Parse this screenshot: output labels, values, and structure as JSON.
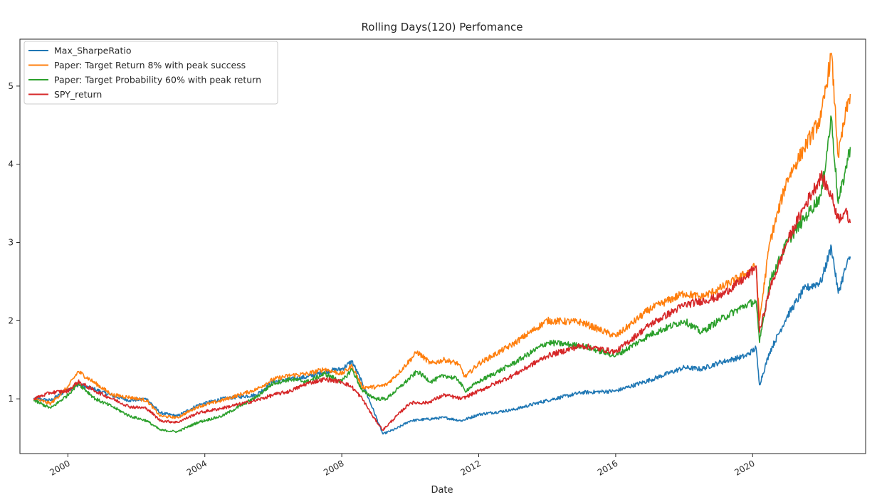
{
  "chart_data": {
    "type": "line",
    "title": "Rolling Days(120) Perfomance",
    "xlabel": "Date",
    "ylabel": "",
    "xlim": [
      1998.6,
      2023.3
    ],
    "ylim": [
      0.3,
      5.6
    ],
    "x_ticks": [
      {
        "value": 2000,
        "label": "2000"
      },
      {
        "value": 2004,
        "label": "2004"
      },
      {
        "value": 2008,
        "label": "2008"
      },
      {
        "value": 2012,
        "label": "2012"
      },
      {
        "value": 2016,
        "label": "2016"
      },
      {
        "value": 2020,
        "label": "2020"
      }
    ],
    "y_ticks": [
      {
        "value": 1,
        "label": "1"
      },
      {
        "value": 2,
        "label": "2"
      },
      {
        "value": 3,
        "label": "3"
      },
      {
        "value": 4,
        "label": "4"
      },
      {
        "value": 5,
        "label": "5"
      }
    ],
    "grid": false,
    "legend_position": "top-left",
    "series": [
      {
        "name": "Max_SharpeRatio",
        "color": "#1f77b4",
        "points": [
          [
            1999.0,
            1.0
          ],
          [
            1999.5,
            0.98
          ],
          [
            2000.0,
            1.12
          ],
          [
            2000.3,
            1.18
          ],
          [
            2000.8,
            1.12
          ],
          [
            2001.3,
            1.04
          ],
          [
            2001.8,
            0.98
          ],
          [
            2002.3,
            1.0
          ],
          [
            2002.7,
            0.82
          ],
          [
            2003.2,
            0.78
          ],
          [
            2003.8,
            0.92
          ],
          [
            2004.5,
            1.0
          ],
          [
            2005.5,
            1.05
          ],
          [
            2006.0,
            1.22
          ],
          [
            2006.5,
            1.25
          ],
          [
            2007.0,
            1.28
          ],
          [
            2007.5,
            1.35
          ],
          [
            2008.0,
            1.38
          ],
          [
            2008.3,
            1.48
          ],
          [
            2008.6,
            1.2
          ],
          [
            2008.9,
            0.88
          ],
          [
            2009.2,
            0.55
          ],
          [
            2009.6,
            0.62
          ],
          [
            2010.0,
            0.72
          ],
          [
            2010.5,
            0.74
          ],
          [
            2011.0,
            0.76
          ],
          [
            2011.5,
            0.72
          ],
          [
            2012.0,
            0.8
          ],
          [
            2013.0,
            0.86
          ],
          [
            2014.0,
            0.98
          ],
          [
            2015.0,
            1.08
          ],
          [
            2016.0,
            1.1
          ],
          [
            2017.0,
            1.24
          ],
          [
            2018.0,
            1.4
          ],
          [
            2018.5,
            1.38
          ],
          [
            2019.0,
            1.46
          ],
          [
            2019.8,
            1.55
          ],
          [
            2020.1,
            1.65
          ],
          [
            2020.2,
            1.18
          ],
          [
            2020.5,
            1.6
          ],
          [
            2021.0,
            2.05
          ],
          [
            2021.5,
            2.4
          ],
          [
            2022.0,
            2.5
          ],
          [
            2022.3,
            2.95
          ],
          [
            2022.5,
            2.35
          ],
          [
            2022.7,
            2.65
          ],
          [
            2022.85,
            2.82
          ]
        ]
      },
      {
        "name": "Paper: Target Return 8% with peak success",
        "color": "#ff7f0e",
        "points": [
          [
            1999.0,
            1.0
          ],
          [
            1999.5,
            0.94
          ],
          [
            2000.0,
            1.15
          ],
          [
            2000.3,
            1.35
          ],
          [
            2000.8,
            1.2
          ],
          [
            2001.3,
            1.05
          ],
          [
            2001.8,
            1.02
          ],
          [
            2002.3,
            0.98
          ],
          [
            2002.7,
            0.78
          ],
          [
            2003.2,
            0.76
          ],
          [
            2003.8,
            0.9
          ],
          [
            2004.5,
            0.98
          ],
          [
            2005.5,
            1.12
          ],
          [
            2006.0,
            1.25
          ],
          [
            2006.5,
            1.3
          ],
          [
            2007.0,
            1.32
          ],
          [
            2007.5,
            1.38
          ],
          [
            2008.0,
            1.32
          ],
          [
            2008.3,
            1.42
          ],
          [
            2008.6,
            1.15
          ],
          [
            2009.0,
            1.15
          ],
          [
            2009.3,
            1.18
          ],
          [
            2009.7,
            1.35
          ],
          [
            2010.2,
            1.6
          ],
          [
            2010.6,
            1.45
          ],
          [
            2011.0,
            1.5
          ],
          [
            2011.4,
            1.45
          ],
          [
            2011.6,
            1.28
          ],
          [
            2012.0,
            1.45
          ],
          [
            2013.0,
            1.7
          ],
          [
            2014.0,
            2.0
          ],
          [
            2015.0,
            1.98
          ],
          [
            2016.0,
            1.8
          ],
          [
            2017.0,
            2.15
          ],
          [
            2018.0,
            2.35
          ],
          [
            2018.5,
            2.3
          ],
          [
            2019.0,
            2.4
          ],
          [
            2019.8,
            2.6
          ],
          [
            2020.1,
            2.7
          ],
          [
            2020.2,
            2.0
          ],
          [
            2020.5,
            3.0
          ],
          [
            2021.0,
            3.8
          ],
          [
            2021.5,
            4.2
          ],
          [
            2022.0,
            4.6
          ],
          [
            2022.3,
            5.42
          ],
          [
            2022.5,
            4.1
          ],
          [
            2022.7,
            4.6
          ],
          [
            2022.85,
            4.9
          ]
        ]
      },
      {
        "name": "Paper: Target Probability 60% with peak return",
        "color": "#2ca02c",
        "points": [
          [
            1999.0,
            0.98
          ],
          [
            1999.5,
            0.88
          ],
          [
            2000.0,
            1.05
          ],
          [
            2000.3,
            1.2
          ],
          [
            2000.8,
            1.0
          ],
          [
            2001.3,
            0.9
          ],
          [
            2001.8,
            0.78
          ],
          [
            2002.3,
            0.72
          ],
          [
            2002.7,
            0.6
          ],
          [
            2003.2,
            0.58
          ],
          [
            2003.8,
            0.7
          ],
          [
            2004.5,
            0.78
          ],
          [
            2005.5,
            1.02
          ],
          [
            2006.0,
            1.2
          ],
          [
            2006.5,
            1.25
          ],
          [
            2007.0,
            1.22
          ],
          [
            2007.5,
            1.32
          ],
          [
            2008.0,
            1.22
          ],
          [
            2008.3,
            1.38
          ],
          [
            2008.6,
            1.1
          ],
          [
            2009.0,
            1.0
          ],
          [
            2009.3,
            1.0
          ],
          [
            2009.7,
            1.15
          ],
          [
            2010.2,
            1.35
          ],
          [
            2010.6,
            1.22
          ],
          [
            2011.0,
            1.3
          ],
          [
            2011.4,
            1.25
          ],
          [
            2011.6,
            1.1
          ],
          [
            2012.0,
            1.22
          ],
          [
            2013.0,
            1.45
          ],
          [
            2014.0,
            1.72
          ],
          [
            2015.0,
            1.68
          ],
          [
            2016.0,
            1.55
          ],
          [
            2017.0,
            1.82
          ],
          [
            2018.0,
            2.0
          ],
          [
            2018.5,
            1.85
          ],
          [
            2019.0,
            2.0
          ],
          [
            2019.8,
            2.2
          ],
          [
            2020.1,
            2.25
          ],
          [
            2020.2,
            1.72
          ],
          [
            2020.5,
            2.5
          ],
          [
            2021.0,
            3.0
          ],
          [
            2021.5,
            3.3
          ],
          [
            2022.0,
            3.6
          ],
          [
            2022.3,
            4.6
          ],
          [
            2022.5,
            3.5
          ],
          [
            2022.7,
            3.9
          ],
          [
            2022.85,
            4.22
          ]
        ]
      },
      {
        "name": "SPY_return",
        "color": "#d62728",
        "points": [
          [
            1999.0,
            1.0
          ],
          [
            1999.5,
            1.08
          ],
          [
            2000.0,
            1.1
          ],
          [
            2000.3,
            1.22
          ],
          [
            2000.8,
            1.1
          ],
          [
            2001.3,
            1.0
          ],
          [
            2001.8,
            0.9
          ],
          [
            2002.3,
            0.88
          ],
          [
            2002.7,
            0.72
          ],
          [
            2003.2,
            0.7
          ],
          [
            2003.8,
            0.82
          ],
          [
            2004.5,
            0.88
          ],
          [
            2005.5,
            0.98
          ],
          [
            2006.0,
            1.05
          ],
          [
            2006.5,
            1.1
          ],
          [
            2007.0,
            1.2
          ],
          [
            2007.5,
            1.25
          ],
          [
            2008.0,
            1.22
          ],
          [
            2008.3,
            1.15
          ],
          [
            2008.6,
            1.0
          ],
          [
            2008.9,
            0.78
          ],
          [
            2009.2,
            0.6
          ],
          [
            2009.6,
            0.78
          ],
          [
            2010.0,
            0.95
          ],
          [
            2010.5,
            0.95
          ],
          [
            2011.0,
            1.05
          ],
          [
            2011.5,
            1.0
          ],
          [
            2012.0,
            1.1
          ],
          [
            2013.0,
            1.3
          ],
          [
            2014.0,
            1.55
          ],
          [
            2015.0,
            1.68
          ],
          [
            2016.0,
            1.6
          ],
          [
            2017.0,
            1.95
          ],
          [
            2018.0,
            2.2
          ],
          [
            2018.5,
            2.25
          ],
          [
            2019.0,
            2.3
          ],
          [
            2019.8,
            2.55
          ],
          [
            2020.1,
            2.7
          ],
          [
            2020.2,
            1.85
          ],
          [
            2020.5,
            2.4
          ],
          [
            2021.0,
            3.0
          ],
          [
            2021.5,
            3.45
          ],
          [
            2022.0,
            3.85
          ],
          [
            2022.3,
            3.6
          ],
          [
            2022.5,
            3.3
          ],
          [
            2022.7,
            3.4
          ],
          [
            2022.85,
            3.25
          ]
        ]
      }
    ]
  }
}
